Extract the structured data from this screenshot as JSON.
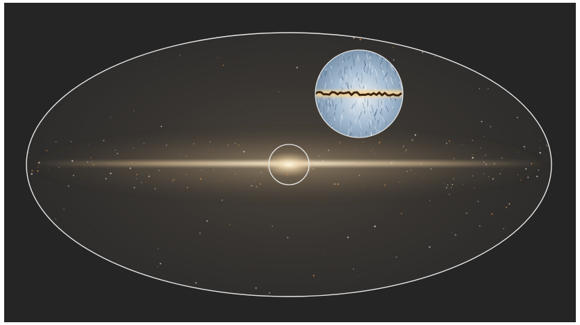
{
  "figure": {
    "background_color": "#252525",
    "frame_color": "#ffffff",
    "sky_projection": "all-sky ellipse",
    "outline_color": "#e8e8e8",
    "galactic_plane_color": "#f3e2bd",
    "bulge_color": "#fff6e2",
    "inset_tint": "#a9bfd3",
    "inset_dust_lane_color": "#3b2410"
  }
}
